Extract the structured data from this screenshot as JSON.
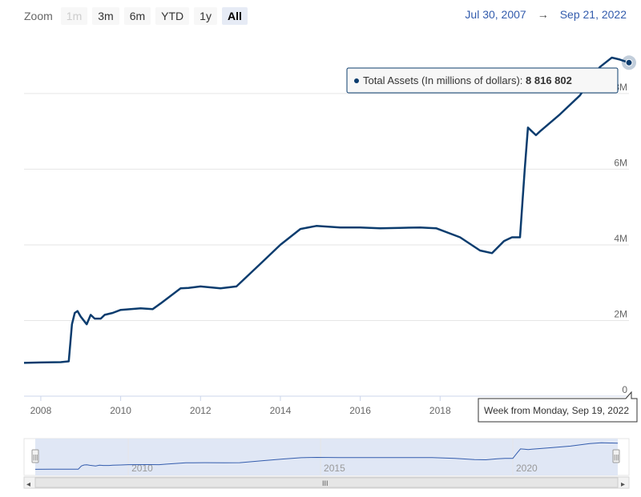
{
  "zoom": {
    "label": "Zoom",
    "buttons": [
      {
        "label": "1m",
        "state": "disabled"
      },
      {
        "label": "3m",
        "state": "normal"
      },
      {
        "label": "6m",
        "state": "normal"
      },
      {
        "label": "YTD",
        "state": "normal"
      },
      {
        "label": "1y",
        "state": "normal"
      },
      {
        "label": "All",
        "state": "active"
      }
    ]
  },
  "range": {
    "from": "Jul 30, 2007",
    "arrow": "→",
    "to": "Sep 21, 2022"
  },
  "tooltip": {
    "series_label": "Total Assets (In millions of dollars): ",
    "value": "8 816 802",
    "x_label": "Week from Monday, Sep 19, 2022"
  },
  "navigator": {
    "labels": [
      "2010",
      "2015",
      "2020"
    ],
    "scroll_grip": "III",
    "scroll_left": "◂",
    "scroll_right": "▸",
    "handle_grip": "|||"
  },
  "colors": {
    "line": "#0b3c6e",
    "grid": "#e6e6e6",
    "navigator_fill": "#dae3f3"
  },
  "chart_data": {
    "type": "line",
    "title": "",
    "xlabel": "",
    "ylabel": "",
    "x_ticks": [
      "2008",
      "2010",
      "2012",
      "2014",
      "2016",
      "2018"
    ],
    "y_ticks": [
      "0",
      "2M",
      "4M",
      "6M",
      "8M"
    ],
    "xlim": [
      2007.58,
      2022.73
    ],
    "ylim": [
      0,
      9500000
    ],
    "grid": "horizontal",
    "series": [
      {
        "name": "Total Assets (In millions of dollars)",
        "x": [
          2007.58,
          2008.0,
          2008.5,
          2008.7,
          2008.78,
          2008.85,
          2008.92,
          2009.0,
          2009.15,
          2009.25,
          2009.35,
          2009.5,
          2009.6,
          2009.8,
          2010.0,
          2010.5,
          2010.8,
          2011.0,
          2011.5,
          2011.7,
          2012.0,
          2012.5,
          2012.9,
          2013.5,
          2014.0,
          2014.5,
          2014.9,
          2015.5,
          2016.0,
          2016.5,
          2017.0,
          2017.5,
          2017.9,
          2018.5,
          2019.0,
          2019.3,
          2019.6,
          2019.8,
          2020.0,
          2020.12,
          2020.2,
          2020.3,
          2020.4,
          2020.5,
          2021.0,
          2021.5,
          2022.0,
          2022.3,
          2022.5,
          2022.73
        ],
        "y": [
          880000,
          890000,
          900000,
          920000,
          1900000,
          2200000,
          2250000,
          2100000,
          1900000,
          2150000,
          2050000,
          2050000,
          2150000,
          2200000,
          2280000,
          2320000,
          2300000,
          2450000,
          2850000,
          2860000,
          2900000,
          2850000,
          2900000,
          3500000,
          4000000,
          4420000,
          4500000,
          4460000,
          4460000,
          4440000,
          4450000,
          4460000,
          4440000,
          4200000,
          3850000,
          3780000,
          4100000,
          4200000,
          4200000,
          6000000,
          7100000,
          7000000,
          6900000,
          7000000,
          7450000,
          7950000,
          8700000,
          8950000,
          8900000,
          8816802
        ]
      }
    ],
    "navigator": {
      "xlim": [
        2007.58,
        2022.73
      ],
      "ylim": [
        0,
        9500000
      ],
      "selection": [
        2007.58,
        2022.73
      ]
    }
  }
}
